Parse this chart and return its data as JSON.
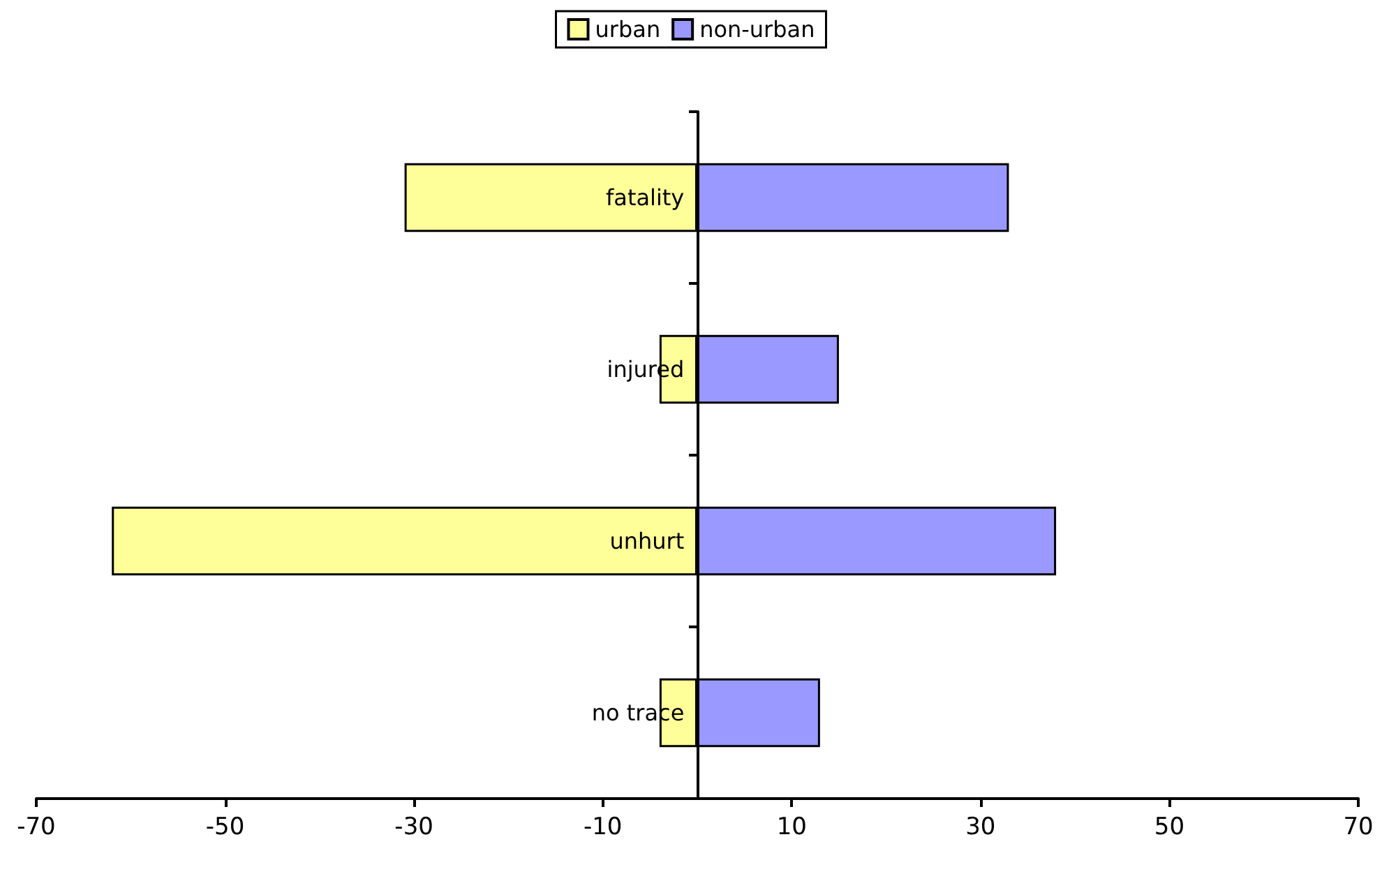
{
  "chart_data": {
    "type": "bar",
    "orientation": "horizontal",
    "categories": [
      "fatality",
      "injured",
      "unhurt",
      "no trace"
    ],
    "series": [
      {
        "name": "urban",
        "color": "#ffff99",
        "values": [
          -31,
          -4,
          -62,
          -4
        ]
      },
      {
        "name": "non-urban",
        "color": "#9999ff",
        "values": [
          33,
          15,
          38,
          13
        ]
      }
    ],
    "stacked": true,
    "xlim": [
      -70,
      70
    ],
    "xticks": [
      -70,
      -50,
      -30,
      -10,
      10,
      30,
      50,
      70
    ],
    "grid": false,
    "legend": "top"
  }
}
